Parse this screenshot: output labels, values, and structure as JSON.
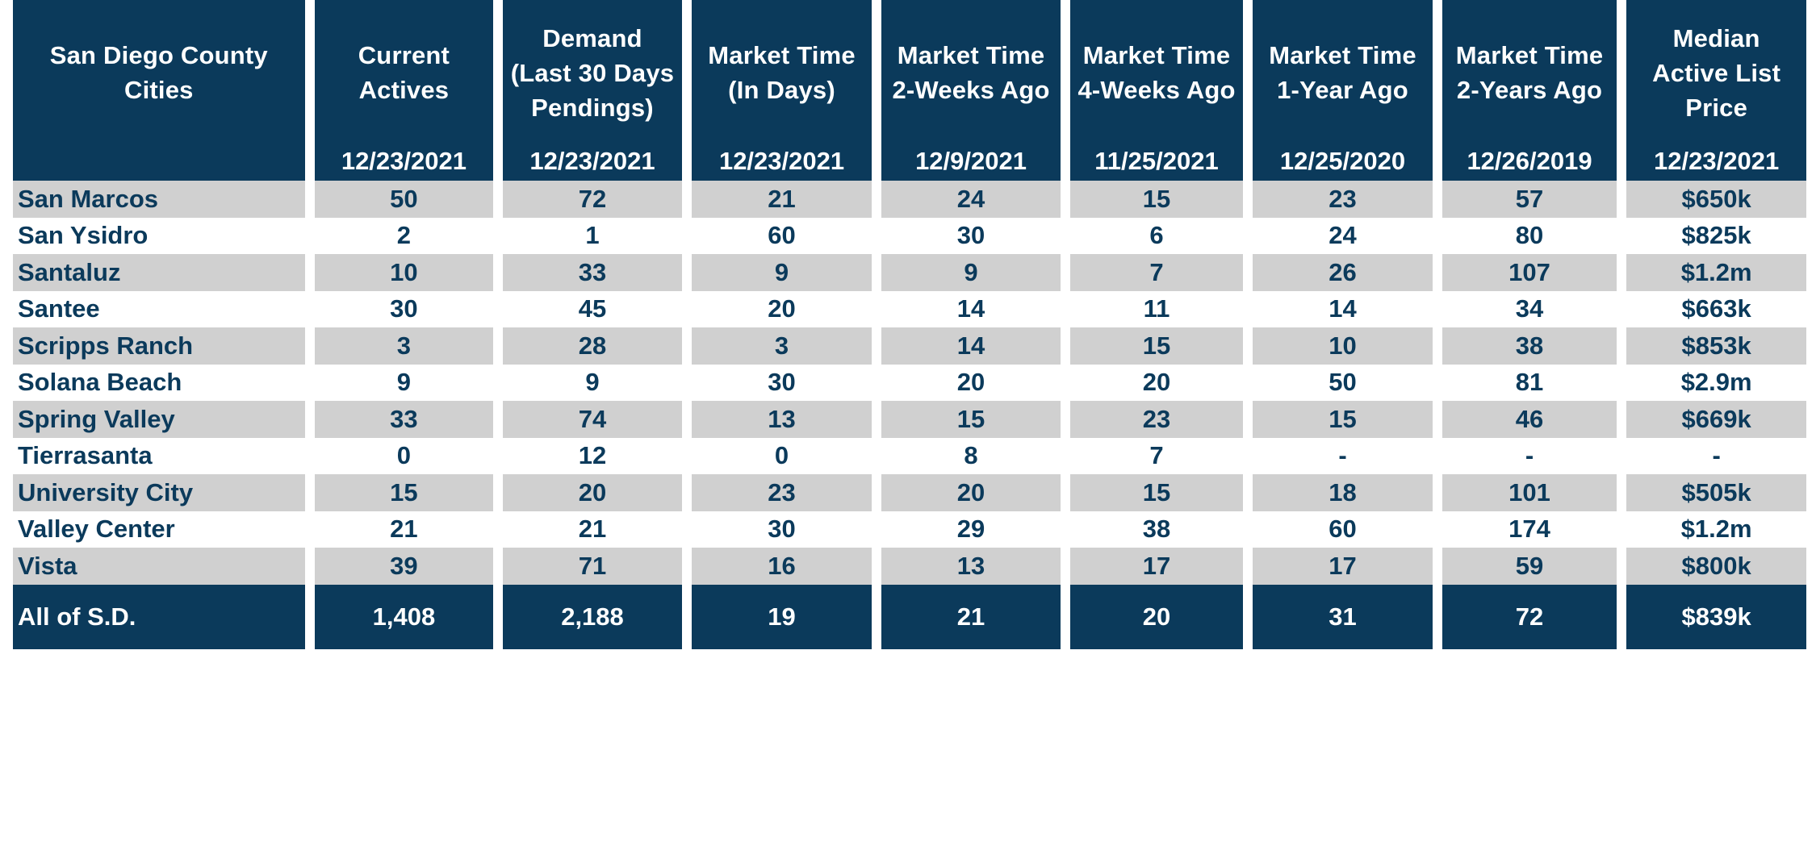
{
  "chart_data": {
    "type": "table",
    "columns": [
      {
        "lines": [
          "San Diego County",
          "Cities"
        ],
        "date": ""
      },
      {
        "lines": [
          "Current",
          "Actives"
        ],
        "date": "12/23/2021"
      },
      {
        "lines": [
          "Demand",
          "(Last 30 Days",
          "Pendings)"
        ],
        "date": "12/23/2021"
      },
      {
        "lines": [
          "Market Time",
          "(In Days)"
        ],
        "date": "12/23/2021"
      },
      {
        "lines": [
          "Market Time",
          "2-Weeks Ago"
        ],
        "date": "12/9/2021"
      },
      {
        "lines": [
          "Market Time",
          "4-Weeks Ago"
        ],
        "date": "11/25/2021"
      },
      {
        "lines": [
          "Market Time",
          "1-Year Ago"
        ],
        "date": "12/25/2020"
      },
      {
        "lines": [
          "Market Time",
          "2-Years Ago"
        ],
        "date": "12/26/2019"
      },
      {
        "lines": [
          "Median",
          "Active List",
          "Price"
        ],
        "date": "12/23/2021"
      }
    ],
    "rows": [
      [
        "San Marcos",
        "50",
        "72",
        "21",
        "24",
        "15",
        "23",
        "57",
        "$650k"
      ],
      [
        "San Ysidro",
        "2",
        "1",
        "60",
        "30",
        "6",
        "24",
        "80",
        "$825k"
      ],
      [
        "Santaluz",
        "10",
        "33",
        "9",
        "9",
        "7",
        "26",
        "107",
        "$1.2m"
      ],
      [
        "Santee",
        "30",
        "45",
        "20",
        "14",
        "11",
        "14",
        "34",
        "$663k"
      ],
      [
        "Scripps Ranch",
        "3",
        "28",
        "3",
        "14",
        "15",
        "10",
        "38",
        "$853k"
      ],
      [
        "Solana Beach",
        "9",
        "9",
        "30",
        "20",
        "20",
        "50",
        "81",
        "$2.9m"
      ],
      [
        "Spring Valley",
        "33",
        "74",
        "13",
        "15",
        "23",
        "15",
        "46",
        "$669k"
      ],
      [
        "Tierrasanta",
        "0",
        "12",
        "0",
        "8",
        "7",
        "-",
        "-",
        "-"
      ],
      [
        "University City",
        "15",
        "20",
        "23",
        "20",
        "15",
        "18",
        "101",
        "$505k"
      ],
      [
        "Valley Center",
        "21",
        "21",
        "30",
        "29",
        "38",
        "60",
        "174",
        "$1.2m"
      ],
      [
        "Vista",
        "39",
        "71",
        "16",
        "13",
        "17",
        "17",
        "59",
        "$800k"
      ]
    ],
    "total": [
      "All of S.D.",
      "1,408",
      "2,188",
      "19",
      "21",
      "20",
      "31",
      "72",
      "$839k"
    ],
    "colors": {
      "header": "#0b3a5b",
      "header_text": "#ffffff",
      "row_shade": "#d0d0d0",
      "row_text": "#0b3a5b"
    }
  }
}
